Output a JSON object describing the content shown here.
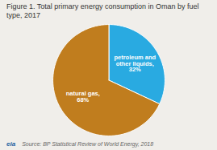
{
  "chart_data": {
    "type": "pie",
    "title": "Figure 1. Total primary energy consumption in Oman by fuel\ntype, 2017",
    "categories": [
      "petroleum and\nother liquids,\n32%",
      "natural gas,\n68%"
    ],
    "values": [
      32,
      68
    ],
    "colors": [
      "#29aae1",
      "#c07d1e"
    ],
    "annotations": [
      "eia",
      "Source: BP Statistical Review of World Energy, 2018"
    ]
  }
}
